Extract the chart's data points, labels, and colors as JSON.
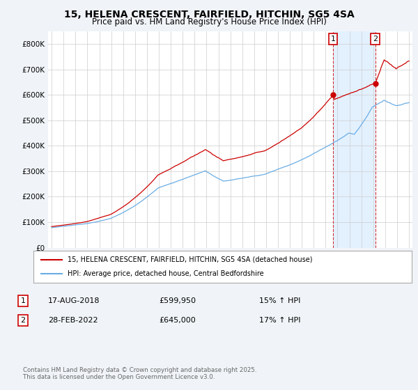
{
  "title": "15, HELENA CRESCENT, FAIRFIELD, HITCHIN, SG5 4SA",
  "subtitle": "Price paid vs. HM Land Registry's House Price Index (HPI)",
  "legend_line1": "15, HELENA CRESCENT, FAIRFIELD, HITCHIN, SG5 4SA (detached house)",
  "legend_line2": "HPI: Average price, detached house, Central Bedfordshire",
  "annotation1_date": "17-AUG-2018",
  "annotation1_price": "£599,950",
  "annotation1_hpi": "15% ↑ HPI",
  "annotation1_year": 2018.63,
  "annotation1_value": 599950,
  "annotation2_date": "28-FEB-2022",
  "annotation2_price": "£645,000",
  "annotation2_hpi": "17% ↑ HPI",
  "annotation2_year": 2022.16,
  "annotation2_value": 645000,
  "footer": "Contains HM Land Registry data © Crown copyright and database right 2025.\nThis data is licensed under the Open Government Licence v3.0.",
  "red_color": "#cc0000",
  "blue_color": "#6aade4",
  "shade_color": "#ddeeff",
  "background_color": "#f0f4f8",
  "plot_bg_color": "#ffffff",
  "ylim": [
    0,
    850000
  ],
  "yticks": [
    0,
    100000,
    200000,
    300000,
    400000,
    500000,
    600000,
    700000,
    800000
  ],
  "start_year": 1995,
  "end_year": 2025
}
